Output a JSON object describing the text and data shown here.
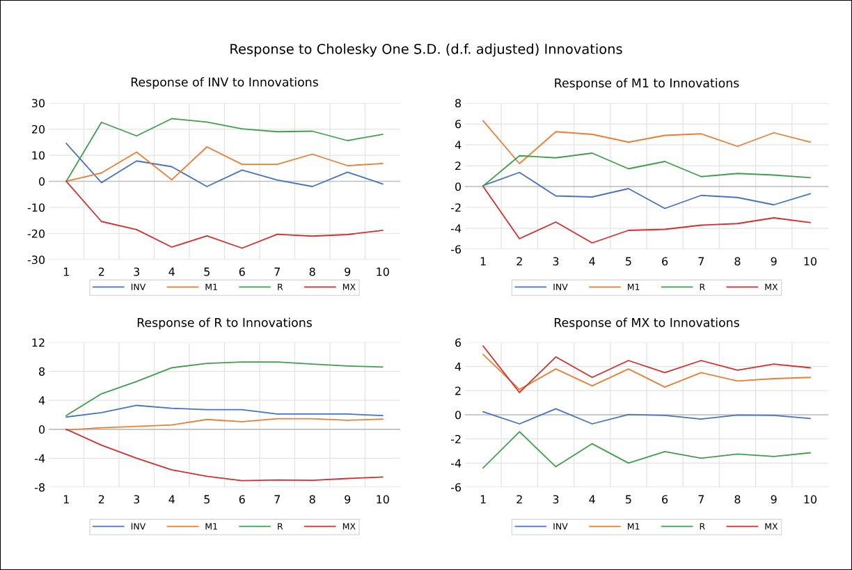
{
  "chart_data": [
    {
      "type": "line",
      "title": "Response of INV to Innovations",
      "annotations": [
        "Response to Cholesky One S.D. (d.f. adjusted) Innovations"
      ],
      "categories": [
        "1",
        "2",
        "3",
        "4",
        "5",
        "6",
        "7",
        "8",
        "9",
        "10"
      ],
      "ylim": [
        -30,
        30
      ],
      "yticks": [
        -30,
        -20,
        -10,
        0,
        10,
        20,
        30
      ],
      "grid": true,
      "legend": "bottom",
      "series": [
        {
          "name": "INV",
          "color": "#4472c4",
          "values": [
            14.5,
            -0.5,
            7.8,
            5.6,
            -2,
            4.3,
            0.5,
            -2,
            3.5,
            -1
          ]
        },
        {
          "name": "M1",
          "color": "#ed7d31",
          "values": [
            0,
            3.2,
            11.2,
            0.6,
            13.2,
            6.5,
            6.5,
            10.4,
            6,
            6.8
          ]
        },
        {
          "name": "R",
          "color": "#3f9e4a",
          "values": [
            0,
            22.6,
            17.4,
            24,
            22.7,
            20.1,
            19,
            19.2,
            15.6,
            18
          ]
        },
        {
          "name": "MX",
          "color": "#d62d2d",
          "values": [
            0,
            -15.4,
            -18.5,
            -25.2,
            -20.9,
            -25.6,
            -20.3,
            -21,
            -20.4,
            -18.8
          ]
        }
      ]
    },
    {
      "type": "line",
      "title": "Response of M1 to Innovations",
      "categories": [
        "1",
        "2",
        "3",
        "4",
        "5",
        "6",
        "7",
        "8",
        "9",
        "10"
      ],
      "ylim": [
        -6,
        8
      ],
      "yticks": [
        -6,
        -4,
        -2,
        0,
        2,
        4,
        6,
        8
      ],
      "grid": true,
      "legend": "bottom",
      "series": [
        {
          "name": "INV",
          "color": "#4472c4",
          "values": [
            0.1,
            1.35,
            -0.9,
            -1,
            -0.2,
            -2.1,
            -0.85,
            -1.05,
            -1.75,
            -0.7
          ]
        },
        {
          "name": "M1",
          "color": "#ed7d31",
          "values": [
            6.3,
            2.2,
            5.25,
            5,
            4.25,
            4.9,
            5.05,
            3.85,
            5.15,
            4.25
          ]
        },
        {
          "name": "R",
          "color": "#3f9e4a",
          "values": [
            0.05,
            2.95,
            2.75,
            3.2,
            1.7,
            2.4,
            0.95,
            1.25,
            1.1,
            0.85
          ]
        },
        {
          "name": "MX",
          "color": "#d62d2d",
          "values": [
            0,
            -5,
            -3.4,
            -5.4,
            -4.2,
            -4.1,
            -3.7,
            -3.55,
            -3,
            -3.45
          ]
        }
      ]
    },
    {
      "type": "line",
      "title": "Response of R to Innovations",
      "categories": [
        "1",
        "2",
        "3",
        "4",
        "5",
        "6",
        "7",
        "8",
        "9",
        "10"
      ],
      "ylim": [
        -8,
        12
      ],
      "yticks": [
        -8,
        -4,
        0,
        4,
        8,
        12
      ],
      "grid": true,
      "legend": "bottom",
      "series": [
        {
          "name": "INV",
          "color": "#4472c4",
          "values": [
            1.7,
            2.3,
            3.3,
            2.9,
            2.7,
            2.7,
            2.1,
            2.1,
            2.1,
            1.9
          ]
        },
        {
          "name": "M1",
          "color": "#ed7d31",
          "values": [
            -0.1,
            0.2,
            0.4,
            0.6,
            1.35,
            1.05,
            1.45,
            1.45,
            1.25,
            1.4
          ]
        },
        {
          "name": "R",
          "color": "#3f9e4a",
          "values": [
            1.9,
            4.9,
            6.6,
            8.5,
            9.1,
            9.3,
            9.3,
            9.0,
            8.75,
            8.6
          ]
        },
        {
          "name": "MX",
          "color": "#d62d2d",
          "values": [
            0,
            -2.2,
            -4.0,
            -5.6,
            -6.5,
            -7.1,
            -7.0,
            -7.05,
            -6.8,
            -6.6
          ]
        }
      ]
    },
    {
      "type": "line",
      "title": "Response of MX to Innovations",
      "categories": [
        "1",
        "2",
        "3",
        "4",
        "5",
        "6",
        "7",
        "8",
        "9",
        "10"
      ],
      "ylim": [
        -6,
        6
      ],
      "yticks": [
        -6,
        -4,
        -2,
        0,
        2,
        4,
        6
      ],
      "grid": true,
      "legend": "bottom",
      "series": [
        {
          "name": "INV",
          "color": "#4472c4",
          "values": [
            0.25,
            -0.75,
            0.5,
            -0.75,
            0.02,
            -0.05,
            -0.35,
            -0.02,
            -0.05,
            -0.3
          ]
        },
        {
          "name": "M1",
          "color": "#ed7d31",
          "values": [
            5.0,
            2.1,
            3.8,
            2.4,
            3.8,
            2.3,
            3.5,
            2.8,
            3.0,
            3.1
          ]
        },
        {
          "name": "R",
          "color": "#3f9e4a",
          "values": [
            -4.4,
            -1.4,
            -4.3,
            -2.4,
            -4.0,
            -3.05,
            -3.6,
            -3.25,
            -3.45,
            -3.15
          ]
        },
        {
          "name": "MX",
          "color": "#d62d2d",
          "values": [
            5.7,
            1.85,
            4.8,
            3.1,
            4.5,
            3.5,
            4.5,
            3.7,
            4.2,
            3.9
          ]
        }
      ]
    }
  ]
}
